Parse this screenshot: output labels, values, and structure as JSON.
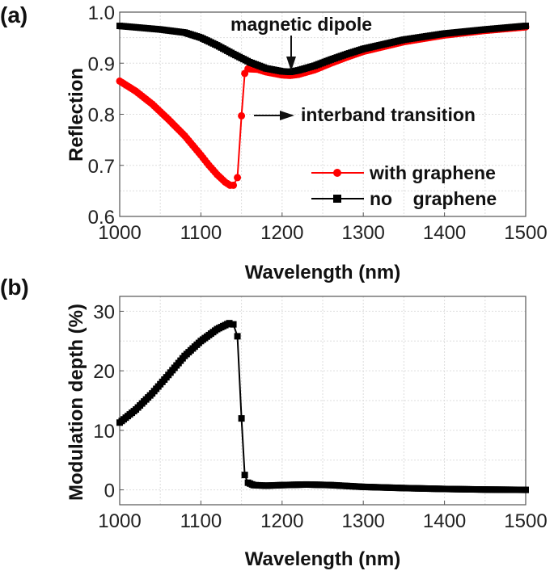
{
  "chart_data": [
    {
      "type": "line",
      "panel_label": "(a)",
      "xlabel": "Wavelength (nm)",
      "ylabel": "Reflection",
      "xlim": [
        1000,
        1500
      ],
      "ylim": [
        0.6,
        1.0
      ],
      "xticks": [
        "1000",
        "1100",
        "1200",
        "1300",
        "1400",
        "1500"
      ],
      "yticks": [
        "0.6",
        "0.7",
        "0.8",
        "0.9",
        "1.0"
      ],
      "grid": true,
      "legend_position": "bottom-right",
      "annotations": [
        "magnetic dipole",
        "interband transition"
      ],
      "series": [
        {
          "name": "with graphene",
          "color": "#ff0000",
          "marker": "circle",
          "x": [
            1000,
            1020,
            1040,
            1060,
            1080,
            1100,
            1110,
            1120,
            1130,
            1136,
            1140,
            1145,
            1150,
            1154,
            1158,
            1170,
            1180,
            1200,
            1210,
            1220,
            1240,
            1260,
            1280,
            1300,
            1350,
            1400,
            1450,
            1500
          ],
          "y": [
            0.865,
            0.845,
            0.82,
            0.79,
            0.758,
            0.72,
            0.7,
            0.682,
            0.667,
            0.661,
            0.661,
            0.676,
            0.797,
            0.88,
            0.889,
            0.888,
            0.883,
            0.877,
            0.876,
            0.878,
            0.887,
            0.9,
            0.912,
            0.923,
            0.942,
            0.955,
            0.964,
            0.971
          ]
        },
        {
          "name": "no    graphene",
          "color": "#000000",
          "marker": "square",
          "x": [
            1000,
            1050,
            1080,
            1100,
            1120,
            1140,
            1160,
            1180,
            1200,
            1210,
            1220,
            1240,
            1260,
            1280,
            1300,
            1350,
            1400,
            1450,
            1500
          ],
          "y": [
            0.973,
            0.966,
            0.96,
            0.95,
            0.935,
            0.918,
            0.902,
            0.89,
            0.884,
            0.883,
            0.886,
            0.895,
            0.907,
            0.918,
            0.928,
            0.946,
            0.958,
            0.966,
            0.973
          ]
        }
      ]
    },
    {
      "type": "line",
      "panel_label": "(b)",
      "xlabel": "Wavelength (nm)",
      "ylabel": "Modulation depth (%)",
      "xlim": [
        1000,
        1500
      ],
      "ylim": [
        -2.5,
        32.5
      ],
      "xticks": [
        "1000",
        "1100",
        "1200",
        "1300",
        "1400",
        "1500"
      ],
      "yticks": [
        "0",
        "10",
        "20",
        "30"
      ],
      "grid": true,
      "series": [
        {
          "color": "#000000",
          "marker": "square",
          "x": [
            1000,
            1020,
            1040,
            1060,
            1080,
            1100,
            1120,
            1135,
            1140,
            1145,
            1150,
            1154,
            1158,
            1165,
            1180,
            1200,
            1230,
            1260,
            1300,
            1350,
            1400,
            1450,
            1500
          ],
          "y": [
            11.3,
            13.5,
            16.2,
            19.3,
            22.5,
            25.0,
            27.0,
            28.0,
            27.8,
            25.8,
            12.0,
            2.5,
            1.2,
            0.8,
            0.7,
            0.8,
            0.9,
            0.8,
            0.5,
            0.3,
            0.15,
            0.05,
            0.0
          ]
        }
      ]
    }
  ]
}
